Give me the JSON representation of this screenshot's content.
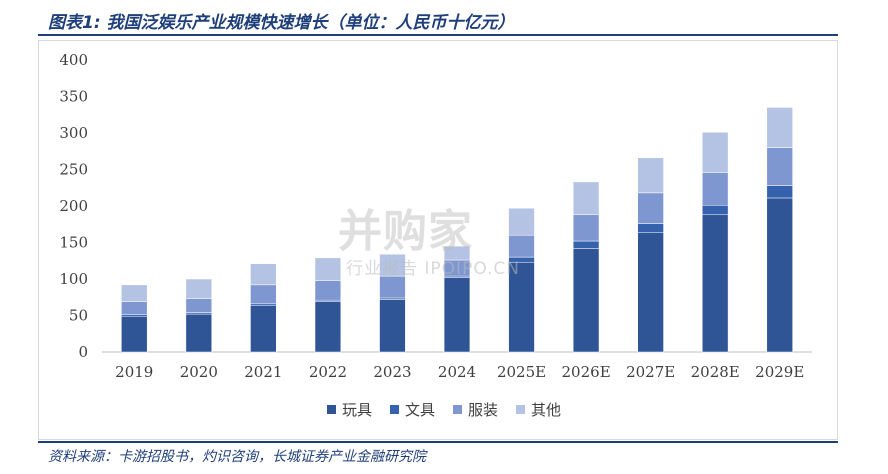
{
  "header": {
    "title": "图表1: 我国泛娱乐产业规模快速增长（单位：人民币十亿元）"
  },
  "footer": {
    "source": "资料来源：卡游招股书，灼识咨询，长城证券产业金融研究院"
  },
  "watermark": {
    "logo_text": "并购家",
    "sub_text": "行业报告 IPOIPO.CN"
  },
  "chart_data": {
    "type": "bar",
    "stacked": true,
    "title": "",
    "xlabel": "",
    "ylabel": "",
    "categories": [
      "2019",
      "2020",
      "2021",
      "2022",
      "2023",
      "2024",
      "2025E",
      "2026E",
      "2027E",
      "2028E",
      "2029E"
    ],
    "ylim": [
      0,
      400
    ],
    "yticks": [
      0,
      50,
      100,
      150,
      200,
      250,
      300,
      350,
      400
    ],
    "grid": false,
    "legend_position": "bottom",
    "series": [
      {
        "name": "玩具",
        "color": "#2f5597",
        "values": [
          49,
          52,
          64,
          69,
          72,
          102,
          123,
          142,
          164,
          188,
          211
        ]
      },
      {
        "name": "文具",
        "color": "#3561ad",
        "values": [
          2,
          2,
          2,
          2,
          2,
          2,
          7,
          10,
          12,
          13,
          17
        ]
      },
      {
        "name": "服装",
        "color": "#7f97d0",
        "values": [
          18,
          19,
          26,
          27,
          30,
          22,
          30,
          36,
          42,
          45,
          52
        ]
      },
      {
        "name": "其他",
        "color": "#b4c3e4",
        "values": [
          23,
          27,
          29,
          31,
          30,
          19,
          37,
          45,
          48,
          55,
          55
        ]
      }
    ]
  }
}
